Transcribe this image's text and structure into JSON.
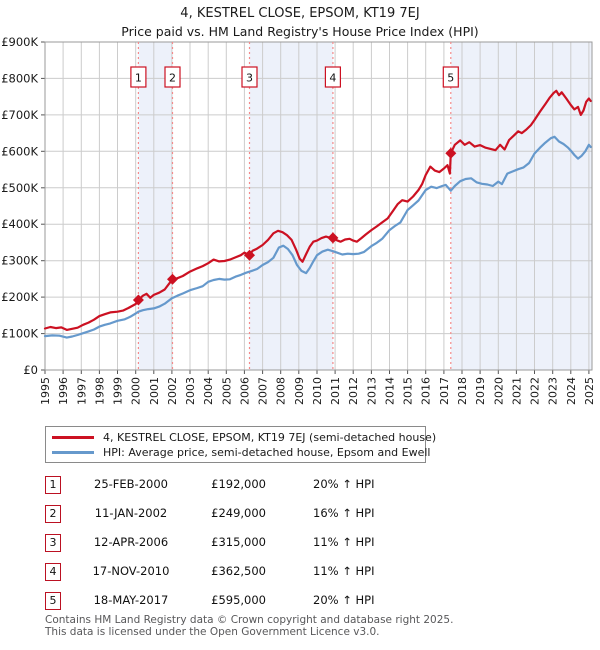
{
  "page": {
    "title": "4, KESTREL CLOSE, EPSOM, KT19 7EJ",
    "subtitle": "Price paid vs. HM Land Registry's House Price Index (HPI)"
  },
  "chart_data": {
    "type": "line",
    "title": "4, KESTREL CLOSE, EPSOM, KT19 7EJ",
    "subtitle": "Price paid vs. HM Land Registry's House Price Index (HPI)",
    "unit": "GBP thousands",
    "xlim": [
      1995,
      2025.17
    ],
    "ylim": [
      0,
      900
    ],
    "grid": true,
    "legend_position": "bottom",
    "xticks": [
      1995,
      1996,
      1997,
      1998,
      1999,
      2000,
      2001,
      2002,
      2003,
      2004,
      2005,
      2006,
      2007,
      2008,
      2009,
      2010,
      2011,
      2012,
      2013,
      2014,
      2015,
      2016,
      2017,
      2018,
      2019,
      2020,
      2021,
      2022,
      2023,
      2024,
      2025
    ],
    "ytick_labels": [
      "£0",
      "£100K",
      "£200K",
      "£300K",
      "£400K",
      "£500K",
      "£600K",
      "£700K",
      "£800K",
      "£900K"
    ],
    "colors": {
      "property_line": "#cc1122",
      "hpi_line": "#6699cc",
      "sale_dashed_line": "#f38a8a",
      "ownership_band": "#edf1fa",
      "gridline": "#cccccc",
      "plot_border": "#9a9a9a",
      "tick": "#555555"
    },
    "ownership_bands": [
      [
        2000.15,
        2002.03
      ],
      [
        2006.28,
        2010.88
      ],
      [
        2017.38,
        2025.17
      ]
    ],
    "sale_markers": [
      {
        "n": "1",
        "x": 2000.15,
        "y": 192
      },
      {
        "n": "2",
        "x": 2002.03,
        "y": 249
      },
      {
        "n": "3",
        "x": 2006.28,
        "y": 315
      },
      {
        "n": "4",
        "x": 2010.88,
        "y": 362.5
      },
      {
        "n": "5",
        "x": 2017.38,
        "y": 595
      }
    ],
    "series": [
      {
        "name": "4, KESTREL CLOSE, EPSOM, KT19 7EJ (semi-detached house)",
        "color": "#cc1122",
        "points": [
          [
            1995.0,
            114
          ],
          [
            1995.3,
            118
          ],
          [
            1995.6,
            115
          ],
          [
            1995.9,
            117
          ],
          [
            1996.2,
            110
          ],
          [
            1996.5,
            113
          ],
          [
            1996.8,
            116
          ],
          [
            1997.1,
            124
          ],
          [
            1997.4,
            130
          ],
          [
            1997.7,
            138
          ],
          [
            1998.0,
            148
          ],
          [
            1998.3,
            153
          ],
          [
            1998.6,
            158
          ],
          [
            1999.0,
            160
          ],
          [
            1999.3,
            163
          ],
          [
            1999.6,
            170
          ],
          [
            2000.0,
            181
          ],
          [
            2000.15,
            192
          ],
          [
            2000.4,
            204
          ],
          [
            2000.6,
            209
          ],
          [
            2000.8,
            198
          ],
          [
            2001.0,
            206
          ],
          [
            2001.3,
            212
          ],
          [
            2001.6,
            221
          ],
          [
            2001.85,
            237
          ],
          [
            2002.03,
            249
          ],
          [
            2002.3,
            252
          ],
          [
            2002.6,
            258
          ],
          [
            2003.0,
            270
          ],
          [
            2003.4,
            279
          ],
          [
            2003.7,
            285
          ],
          [
            2004.0,
            293
          ],
          [
            2004.3,
            303
          ],
          [
            2004.6,
            298
          ],
          [
            2004.9,
            299
          ],
          [
            2005.2,
            303
          ],
          [
            2005.5,
            309
          ],
          [
            2005.8,
            315
          ],
          [
            2006.0,
            322
          ],
          [
            2006.15,
            318
          ],
          [
            2006.28,
            315
          ],
          [
            2006.45,
            327
          ],
          [
            2006.7,
            333
          ],
          [
            2007.0,
            343
          ],
          [
            2007.3,
            357
          ],
          [
            2007.6,
            375
          ],
          [
            2007.85,
            382
          ],
          [
            2008.1,
            378
          ],
          [
            2008.35,
            370
          ],
          [
            2008.6,
            357
          ],
          [
            2008.85,
            330
          ],
          [
            2009.05,
            305
          ],
          [
            2009.2,
            297
          ],
          [
            2009.4,
            318
          ],
          [
            2009.6,
            338
          ],
          [
            2009.8,
            352
          ],
          [
            2010.0,
            355
          ],
          [
            2010.25,
            362
          ],
          [
            2010.5,
            366
          ],
          [
            2010.7,
            363
          ],
          [
            2010.88,
            362.5
          ],
          [
            2011.1,
            356
          ],
          [
            2011.3,
            352
          ],
          [
            2011.55,
            358
          ],
          [
            2011.8,
            360
          ],
          [
            2012.0,
            355
          ],
          [
            2012.2,
            352
          ],
          [
            2012.45,
            362
          ],
          [
            2012.7,
            372
          ],
          [
            2013.0,
            384
          ],
          [
            2013.3,
            394
          ],
          [
            2013.6,
            405
          ],
          [
            2013.9,
            416
          ],
          [
            2014.2,
            437
          ],
          [
            2014.45,
            455
          ],
          [
            2014.7,
            466
          ],
          [
            2015.0,
            462
          ],
          [
            2015.3,
            476
          ],
          [
            2015.6,
            494
          ],
          [
            2015.8,
            510
          ],
          [
            2016.0,
            535
          ],
          [
            2016.25,
            558
          ],
          [
            2016.5,
            547
          ],
          [
            2016.75,
            543
          ],
          [
            2017.0,
            553
          ],
          [
            2017.2,
            562
          ],
          [
            2017.33,
            539
          ],
          [
            2017.38,
            595
          ],
          [
            2017.6,
            618
          ],
          [
            2017.9,
            630
          ],
          [
            2018.15,
            618
          ],
          [
            2018.4,
            625
          ],
          [
            2018.7,
            613
          ],
          [
            2019.0,
            617
          ],
          [
            2019.3,
            610
          ],
          [
            2019.6,
            606
          ],
          [
            2019.85,
            603
          ],
          [
            2020.1,
            618
          ],
          [
            2020.35,
            605
          ],
          [
            2020.6,
            631
          ],
          [
            2020.85,
            643
          ],
          [
            2021.1,
            655
          ],
          [
            2021.3,
            650
          ],
          [
            2021.55,
            660
          ],
          [
            2021.8,
            672
          ],
          [
            2022.0,
            686
          ],
          [
            2022.3,
            709
          ],
          [
            2022.6,
            730
          ],
          [
            2022.85,
            748
          ],
          [
            2023.05,
            760
          ],
          [
            2023.2,
            766
          ],
          [
            2023.35,
            754
          ],
          [
            2023.5,
            762
          ],
          [
            2023.75,
            745
          ],
          [
            2024.0,
            727
          ],
          [
            2024.2,
            715
          ],
          [
            2024.4,
            722
          ],
          [
            2024.55,
            700
          ],
          [
            2024.7,
            712
          ],
          [
            2024.85,
            736
          ],
          [
            2025.0,
            745
          ],
          [
            2025.1,
            738
          ]
        ]
      },
      {
        "name": "HPI: Average price, semi-detached house, Epsom and Ewell",
        "color": "#6699cc",
        "points": [
          [
            1995.0,
            93
          ],
          [
            1995.4,
            95
          ],
          [
            1995.8,
            94
          ],
          [
            1996.2,
            89
          ],
          [
            1996.5,
            92
          ],
          [
            1996.8,
            96
          ],
          [
            1997.1,
            101
          ],
          [
            1997.4,
            106
          ],
          [
            1997.7,
            111
          ],
          [
            1998.0,
            119
          ],
          [
            1998.3,
            124
          ],
          [
            1998.6,
            128
          ],
          [
            1999.0,
            135
          ],
          [
            1999.4,
            139
          ],
          [
            1999.7,
            146
          ],
          [
            2000.0,
            155
          ],
          [
            2000.15,
            160
          ],
          [
            2000.4,
            164
          ],
          [
            2000.7,
            167
          ],
          [
            2001.0,
            169
          ],
          [
            2001.3,
            174
          ],
          [
            2001.6,
            182
          ],
          [
            2002.0,
            197
          ],
          [
            2002.3,
            204
          ],
          [
            2002.6,
            210
          ],
          [
            2003.0,
            219
          ],
          [
            2003.4,
            225
          ],
          [
            2003.7,
            230
          ],
          [
            2004.0,
            242
          ],
          [
            2004.3,
            247
          ],
          [
            2004.6,
            250
          ],
          [
            2004.9,
            248
          ],
          [
            2005.2,
            249
          ],
          [
            2005.5,
            256
          ],
          [
            2005.8,
            261
          ],
          [
            2006.1,
            267
          ],
          [
            2006.4,
            272
          ],
          [
            2006.7,
            277
          ],
          [
            2007.0,
            288
          ],
          [
            2007.3,
            296
          ],
          [
            2007.6,
            308
          ],
          [
            2007.9,
            336
          ],
          [
            2008.15,
            341
          ],
          [
            2008.4,
            332
          ],
          [
            2008.65,
            315
          ],
          [
            2008.9,
            288
          ],
          [
            2009.15,
            272
          ],
          [
            2009.4,
            266
          ],
          [
            2009.6,
            280
          ],
          [
            2009.8,
            298
          ],
          [
            2010.0,
            315
          ],
          [
            2010.3,
            325
          ],
          [
            2010.6,
            330
          ],
          [
            2010.88,
            326
          ],
          [
            2011.1,
            322
          ],
          [
            2011.4,
            317
          ],
          [
            2011.7,
            319
          ],
          [
            2012.0,
            318
          ],
          [
            2012.3,
            319
          ],
          [
            2012.6,
            324
          ],
          [
            2013.0,
            340
          ],
          [
            2013.3,
            349
          ],
          [
            2013.6,
            360
          ],
          [
            2014.0,
            384
          ],
          [
            2014.3,
            395
          ],
          [
            2014.6,
            405
          ],
          [
            2015.0,
            439
          ],
          [
            2015.3,
            452
          ],
          [
            2015.6,
            465
          ],
          [
            2016.0,
            494
          ],
          [
            2016.3,
            503
          ],
          [
            2016.6,
            499
          ],
          [
            2016.9,
            505
          ],
          [
            2017.1,
            508
          ],
          [
            2017.38,
            492
          ],
          [
            2017.6,
            505
          ],
          [
            2017.9,
            518
          ],
          [
            2018.2,
            524
          ],
          [
            2018.5,
            526
          ],
          [
            2018.8,
            515
          ],
          [
            2019.1,
            511
          ],
          [
            2019.4,
            509
          ],
          [
            2019.7,
            505
          ],
          [
            2020.0,
            517
          ],
          [
            2020.2,
            510
          ],
          [
            2020.5,
            539
          ],
          [
            2020.8,
            545
          ],
          [
            2021.1,
            551
          ],
          [
            2021.4,
            556
          ],
          [
            2021.7,
            568
          ],
          [
            2022.0,
            594
          ],
          [
            2022.3,
            610
          ],
          [
            2022.6,
            624
          ],
          [
            2022.9,
            636
          ],
          [
            2023.1,
            640
          ],
          [
            2023.35,
            627
          ],
          [
            2023.6,
            620
          ],
          [
            2023.85,
            610
          ],
          [
            2024.0,
            602
          ],
          [
            2024.2,
            590
          ],
          [
            2024.4,
            580
          ],
          [
            2024.6,
            588
          ],
          [
            2024.8,
            600
          ],
          [
            2025.0,
            618
          ],
          [
            2025.1,
            612
          ]
        ]
      }
    ]
  },
  "legend": {
    "items": [
      {
        "label": "4, KESTREL CLOSE, EPSOM, KT19 7EJ (semi-detached house)",
        "color": "#cc1122"
      },
      {
        "label": "HPI: Average price, semi-detached house, Epsom and Ewell",
        "color": "#6699cc"
      }
    ]
  },
  "transactions": [
    {
      "num": "1",
      "date": "25-FEB-2000",
      "price": "£192,000",
      "hpi": "20% ↑ HPI"
    },
    {
      "num": "2",
      "date": "11-JAN-2002",
      "price": "£249,000",
      "hpi": "16% ↑ HPI"
    },
    {
      "num": "3",
      "date": "12-APR-2006",
      "price": "£315,000",
      "hpi": "11% ↑ HPI"
    },
    {
      "num": "4",
      "date": "17-NOV-2010",
      "price": "£362,500",
      "hpi": "11% ↑ HPI"
    },
    {
      "num": "5",
      "date": "18-MAY-2017",
      "price": "£595,000",
      "hpi": "20% ↑ HPI"
    }
  ],
  "footer": {
    "line1": "Contains HM Land Registry data © Crown copyright and database right 2025.",
    "line2": "This data is licensed under the Open Government Licence v3.0."
  }
}
